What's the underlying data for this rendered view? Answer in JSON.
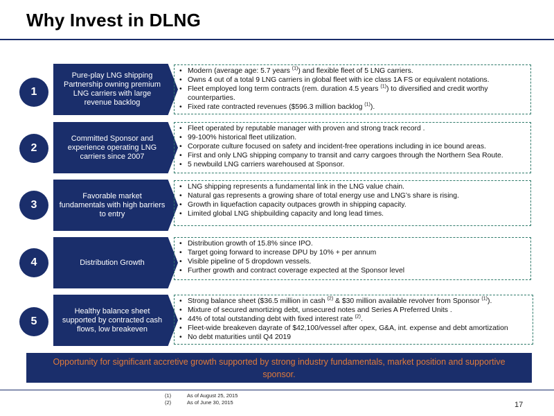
{
  "title": "Why Invest in DLNG",
  "rows": [
    {
      "number": "1",
      "label": "Pure-play LNG shipping Partnership owning premium LNG carriers with large revenue backlog",
      "bullets": [
        {
          "pre": "Modern (average age: 5.7 years ",
          "sup": "(1)",
          "post": ") and flexible fleet of 5 LNG carriers."
        },
        {
          "pre": "Owns 4 out of a total 9 LNG carriers in global fleet with ice class 1A FS or equivalent notations.",
          "sup": "",
          "post": ""
        },
        {
          "pre": "Fleet employed long term contracts (rem. duration 4.5 years ",
          "sup": "(1)",
          "post": ") to diversified and credit worthy counterparties."
        },
        {
          "pre": "Fixed rate contracted revenues ($596.3 million backlog ",
          "sup": "(1)",
          "post": ")."
        }
      ]
    },
    {
      "number": "2",
      "label": "Committed Sponsor and experience operating LNG carriers since 2007",
      "bullets": [
        {
          "pre": "Fleet operated by reputable manager with proven and strong track record .",
          "sup": "",
          "post": ""
        },
        {
          "pre": "99-100% historical fleet utilization.",
          "sup": "",
          "post": ""
        },
        {
          "pre": "Corporate culture focused on safety and incident-free operations including in ice bound areas.",
          "sup": "",
          "post": ""
        },
        {
          "pre": "First and only LNG shipping company to transit and carry cargoes through the Northern Sea Route.",
          "sup": "",
          "post": ""
        },
        {
          "pre": "5 newbuild LNG carriers warehoused at Sponsor.",
          "sup": "",
          "post": ""
        }
      ]
    },
    {
      "number": "3",
      "label": "Favorable market fundamentals with high barriers to entry",
      "bullets": [
        {
          "pre": "LNG shipping represents a fundamental link in the LNG value chain.",
          "sup": "",
          "post": ""
        },
        {
          "pre": "Natural gas represents a growing share of total energy use and LNG’s share is rising.",
          "sup": "",
          "post": ""
        },
        {
          "pre": "Growth in liquefaction capacity outpaces growth in shipping capacity.",
          "sup": "",
          "post": ""
        },
        {
          "pre": "Limited global LNG shipbuilding capacity and long lead times.",
          "sup": "",
          "post": ""
        }
      ]
    },
    {
      "number": "4",
      "label": "Distribution Growth",
      "bullets": [
        {
          "pre": "Distribution growth of 15.8% since IPO.",
          "sup": "",
          "post": ""
        },
        {
          "pre": "Target going forward to increase DPU by 10% + per annum",
          "sup": "",
          "post": ""
        },
        {
          "pre": "Visible pipeline of 5 dropdown vessels.",
          "sup": "",
          "post": ""
        },
        {
          "pre": "Further growth and contract coverage expected at the Sponsor level",
          "sup": "",
          "post": ""
        }
      ]
    },
    {
      "number": "5",
      "label": "Healthy balance sheet supported by contracted cash flows, low breakeven",
      "bullets": [
        {
          "pre": "Strong balance sheet  ($36.5 million in cash ",
          "sup": "(2)",
          "post": " & $30 million available revolver from Sponsor ",
          "sup2": "(1)",
          "post2": ")."
        },
        {
          "pre": "Mixture of secured amortizing debt, unsecured notes and Series A Preferred Units .",
          "sup": "",
          "post": ""
        },
        {
          "pre": "44% of total outstanding debt with fixed interest rate ",
          "sup": "(2)",
          "post": "."
        },
        {
          "pre": "Fleet-wide breakeven dayrate of $42,100/vessel after opex, G&A, int. expense and debt amortization",
          "sup": "",
          "post": ""
        },
        {
          "pre": "No debt maturities until Q4 2019",
          "sup": "",
          "post": ""
        }
      ]
    }
  ],
  "banner": "Opportunity for significant accretive growth supported by strong industry fundamentals, market position and supportive sponsor.",
  "footnotes": [
    {
      "num": "(1)",
      "text": "As of  August 25, 2015"
    },
    {
      "num": "(2)",
      "text": "As of June 30, 2015"
    }
  ],
  "page_number": "17",
  "colors": {
    "navy": "#1a2e6b",
    "banner_text": "#e07a3a",
    "dashed_border": "#2f7a6a"
  }
}
